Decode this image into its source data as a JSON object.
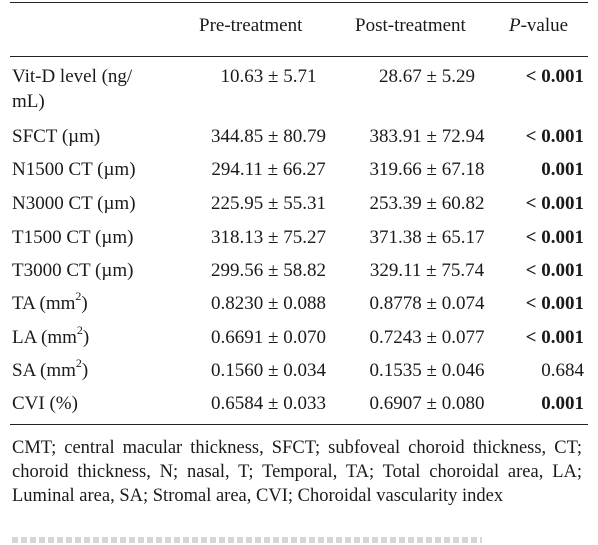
{
  "header": {
    "col_pre": "Pre-treatment",
    "col_post": "Post-treatment",
    "col_p_letter": "P",
    "col_p_rest": "-value"
  },
  "rows": [
    {
      "label": "Vit-D level (ng/",
      "label2": "mL)",
      "pre": "10.63 ± 5.71",
      "post": "28.67 ± 5.29",
      "p": "< 0.001",
      "bold": true
    },
    {
      "label": "SFCT (µm)",
      "pre": "344.85 ± 80.79",
      "post": "383.91 ± 72.94",
      "p": "< 0.001",
      "bold": true
    },
    {
      "label": "N1500 CT (µm)",
      "pre": "294.11 ± 66.27",
      "post": "319.66 ± 67.18",
      "p": "0.001",
      "bold": true
    },
    {
      "label": "N3000 CT (µm)",
      "pre": "225.95 ± 55.31",
      "post": "253.39 ± 60.82",
      "p": "< 0.001",
      "bold": true
    },
    {
      "label": "T1500 CT (µm)",
      "pre": "318.13 ± 75.27",
      "post": "371.38 ± 65.17",
      "p": "< 0.001",
      "bold": true
    },
    {
      "label": "T3000 CT (µm)",
      "pre": "299.56 ± 58.82",
      "post": "329.11 ± 75.74",
      "p": "< 0.001",
      "bold": true
    },
    {
      "label": "TA (mm",
      "sup": "2",
      "label_end": ")",
      "pre": "0.8230 ± 0.088",
      "post": "0.8778 ± 0.074",
      "p": "< 0.001",
      "bold": true
    },
    {
      "label": "LA (mm",
      "sup": "2",
      "label_end": ")",
      "pre": "0.6691 ± 0.070",
      "post": "0.7243 ± 0.077",
      "p": "< 0.001",
      "bold": true
    },
    {
      "label": "SA (mm",
      "sup": "2",
      "label_end": ")",
      "pre": "0.1560 ± 0.034",
      "post": "0.1535 ± 0.046",
      "p": "0.684",
      "bold": false
    },
    {
      "label": "CVI (%)",
      "pre": "0.6584 ± 0.033",
      "post": "0.6907 ± 0.080",
      "p": "0.001",
      "bold": true
    }
  ],
  "footnote": "CMT; central macular thickness, SFCT; subfoveal choroid thickness, CT; choroid thickness, N; nasal, T; Temporal, TA; Total choroidal area, LA; Luminal area, SA; Stromal area, CVI; Choroidal vascularity index"
}
